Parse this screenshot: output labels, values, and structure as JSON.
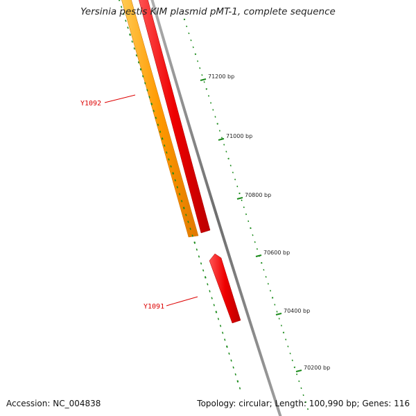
{
  "title": "Yersinia pestis KIM plasmid pMT-1, complete sequence",
  "footer": {
    "accession": "Accession: NC_004838",
    "summary": "Topology: circular; Length: 100,990 bp; Genes: 116"
  },
  "colors": {
    "background": "#ffffff",
    "backbone": "#808080",
    "scale_ticks": "#1a8a1a",
    "gene_forward": "#ff0000",
    "gene_reverse": "#ff9900",
    "gene_label": "#dd0000"
  },
  "scale": {
    "unit": "bp",
    "labels": [
      "71200 bp",
      "71000 bp",
      "70800 bp",
      "70600 bp",
      "70400 bp",
      "70200 bp"
    ]
  },
  "genes": [
    {
      "name": "Y1092",
      "color": "#ff0000"
    },
    {
      "name": "Y1091",
      "color": "#ff0000"
    }
  ],
  "tracks": [
    {
      "name": "forward-strand-genes",
      "color": "#ff0000"
    },
    {
      "name": "reverse-strand-genes",
      "color": "#ff9900"
    }
  ]
}
